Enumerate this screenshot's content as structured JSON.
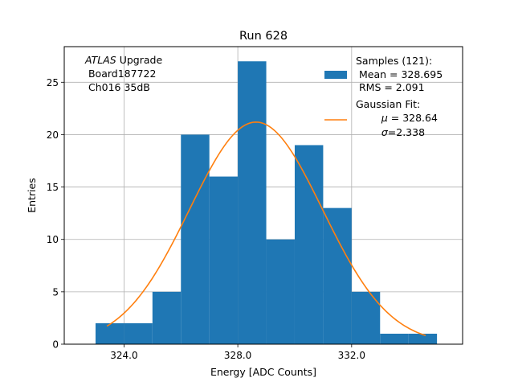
{
  "chart_data": {
    "type": "bar",
    "title": "Run 628",
    "xlabel": "Energy [ADC Counts]",
    "ylabel": "Entries",
    "xlim": [
      321.9,
      335.9
    ],
    "ylim": [
      0,
      28.4
    ],
    "xticks": [
      324.0,
      328.0,
      332.0
    ],
    "xtick_labels": [
      "324.0",
      "328.0",
      "332.0"
    ],
    "yticks": [
      0,
      5,
      10,
      15,
      20,
      25
    ],
    "grid": true,
    "legend_position": "top-right",
    "bin_edges": [
      323.0,
      324.0,
      325.0,
      326.0,
      327.0,
      328.0,
      329.0,
      330.0,
      331.0,
      332.0,
      333.0,
      334.0,
      335.0
    ],
    "counts": [
      2,
      2,
      5,
      20,
      16,
      27,
      10,
      19,
      13,
      5,
      1,
      1
    ],
    "histogram_color": "#1f77b4",
    "fit_color": "#ff7f0e",
    "fit": {
      "mu": 328.64,
      "sigma": 2.338,
      "peak": 21.2,
      "x_range": [
        323.4,
        334.6
      ]
    },
    "annotation": {
      "italic": "ATLAS",
      "line1_rest": " Upgrade",
      "line2": " Board187722",
      "line3": " Ch016 35dB"
    },
    "legend": {
      "samples": {
        "title": "Samples (121):",
        "line1": " Mean = 328.695",
        "line2": " RMS = 2.091"
      },
      "fit": {
        "title": "Gaussian Fit:",
        "mu_symbol": "μ",
        "mu_rest": " = 328.64",
        "sigma_symbol": "σ",
        "sigma_rest": "=2.338"
      }
    }
  }
}
